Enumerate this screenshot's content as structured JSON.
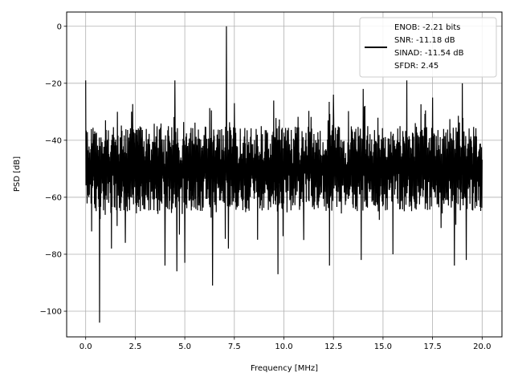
{
  "chart_data": {
    "type": "line",
    "title": "",
    "xlabel": "Frequency [MHz]",
    "ylabel": "PSD [dB]",
    "xlim": [
      -0.96,
      21.0
    ],
    "ylim": [
      -109.0,
      5.0
    ],
    "x_ticks": [
      0.0,
      2.5,
      5.0,
      7.5,
      10.0,
      12.5,
      15.0,
      17.5,
      20.0
    ],
    "x_tick_labels": [
      "0.0",
      "2.5",
      "5.0",
      "7.5",
      "10.0",
      "12.5",
      "15.0",
      "17.5",
      "20.0"
    ],
    "y_ticks": [
      0,
      -20,
      -40,
      -60,
      -80,
      -100
    ],
    "y_tick_labels": [
      "0",
      "−20",
      "−40",
      "−60",
      "−80",
      "−100"
    ],
    "grid": true,
    "legend_position": "top-right",
    "legend_entries": [
      "ENOB: -2.21 bits",
      "SNR: -11.18 dB",
      "SINAD: -11.54 dB",
      "SFDR: 2.45"
    ],
    "series": [
      {
        "color": "#000000",
        "x_range": [
          0.0,
          20.0
        ],
        "noise_floor_db": [
          -65,
          -35
        ],
        "peaks": [
          {
            "x": 0.0,
            "y": -19
          },
          {
            "x": 1.0,
            "y": -33
          },
          {
            "x": 1.6,
            "y": -30
          },
          {
            "x": 4.5,
            "y": -19
          },
          {
            "x": 5.0,
            "y": -28
          },
          {
            "x": 7.1,
            "y": 0
          },
          {
            "x": 7.5,
            "y": -27
          },
          {
            "x": 12.5,
            "y": -24
          },
          {
            "x": 14.0,
            "y": -22
          },
          {
            "x": 16.2,
            "y": -19
          },
          {
            "x": 17.5,
            "y": -25
          },
          {
            "x": 19.0,
            "y": -20
          }
        ],
        "troughs": [
          {
            "x": 0.3,
            "y": -72
          },
          {
            "x": 0.7,
            "y": -104
          },
          {
            "x": 1.3,
            "y": -78
          },
          {
            "x": 2.0,
            "y": -76
          },
          {
            "x": 4.0,
            "y": -84
          },
          {
            "x": 4.6,
            "y": -86
          },
          {
            "x": 5.0,
            "y": -83
          },
          {
            "x": 6.4,
            "y": -91
          },
          {
            "x": 7.2,
            "y": -78
          },
          {
            "x": 9.7,
            "y": -87
          },
          {
            "x": 11.0,
            "y": -75
          },
          {
            "x": 12.3,
            "y": -84
          },
          {
            "x": 13.9,
            "y": -82
          },
          {
            "x": 15.5,
            "y": -80
          },
          {
            "x": 18.6,
            "y": -84
          },
          {
            "x": 19.2,
            "y": -82
          }
        ]
      }
    ]
  }
}
